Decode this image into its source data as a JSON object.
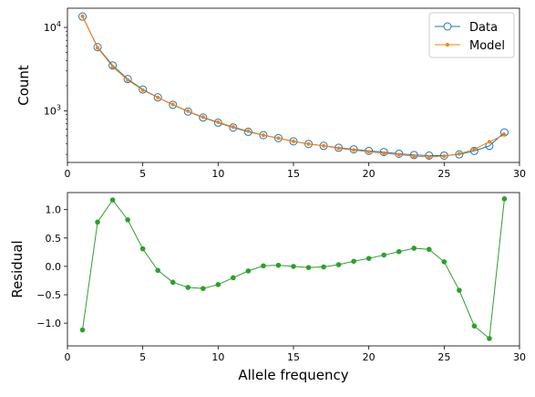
{
  "chart_data": [
    {
      "type": "line",
      "title": "",
      "xlabel": "",
      "ylabel": "Count",
      "xlim": [
        0,
        30
      ],
      "ylim": [
        240,
        17000
      ],
      "yscale": "log",
      "xticks": [
        0,
        5,
        10,
        15,
        20,
        25,
        30
      ],
      "yticks": [
        {
          "value": 1000,
          "base": "10",
          "exp": "3"
        },
        {
          "value": 10000,
          "base": "10",
          "exp": "4"
        }
      ],
      "legend": {
        "location": "top-right",
        "entries": [
          "Data",
          "Model"
        ]
      },
      "x": [
        1,
        2,
        3,
        4,
        5,
        6,
        7,
        8,
        9,
        10,
        11,
        12,
        13,
        14,
        15,
        16,
        17,
        18,
        19,
        20,
        21,
        22,
        23,
        24,
        25,
        26,
        27,
        28,
        29
      ],
      "series": [
        {
          "name": "Data",
          "color": "#1f77b4",
          "marker": "open-circle",
          "values": [
            13500,
            5800,
            3500,
            2400,
            1800,
            1450,
            1180,
            980,
            830,
            720,
            630,
            560,
            510,
            470,
            430,
            400,
            380,
            360,
            345,
            330,
            320,
            305,
            295,
            290,
            290,
            300,
            330,
            380,
            550
          ]
        },
        {
          "name": "Model",
          "color": "#ff7f0e",
          "marker": "dot",
          "values": [
            13600,
            5700,
            3380,
            2340,
            1770,
            1440,
            1190,
            990,
            840,
            730,
            640,
            570,
            510,
            470,
            430,
            400,
            380,
            355,
            338,
            322,
            310,
            297,
            285,
            280,
            285,
            305,
            345,
            425,
            515
          ]
        }
      ]
    },
    {
      "type": "line",
      "title": "",
      "xlabel": "Allele frequency",
      "ylabel": "Residual",
      "xlim": [
        0,
        30
      ],
      "ylim": [
        -1.4,
        1.3
      ],
      "xticks": [
        0,
        5,
        10,
        15,
        20,
        25,
        30
      ],
      "yticks": [
        -1.0,
        -0.5,
        0.0,
        0.5,
        1.0
      ],
      "ytick_labels": [
        "−1.0",
        "−0.5",
        "0.0",
        "0.5",
        "1.0"
      ],
      "x": [
        1,
        2,
        3,
        4,
        5,
        6,
        7,
        8,
        9,
        10,
        11,
        12,
        13,
        14,
        15,
        16,
        17,
        18,
        19,
        20,
        21,
        22,
        23,
        24,
        25,
        26,
        27,
        28,
        29
      ],
      "series": [
        {
          "color": "#2ca02c",
          "marker": "dot",
          "values": [
            -1.12,
            0.78,
            1.17,
            0.82,
            0.31,
            -0.07,
            -0.28,
            -0.37,
            -0.39,
            -0.32,
            -0.2,
            -0.08,
            0.01,
            0.02,
            0.0,
            -0.02,
            -0.01,
            0.03,
            0.09,
            0.14,
            0.2,
            0.26,
            0.32,
            0.3,
            0.08,
            -0.42,
            -1.05,
            -1.27,
            1.19
          ]
        }
      ]
    }
  ]
}
